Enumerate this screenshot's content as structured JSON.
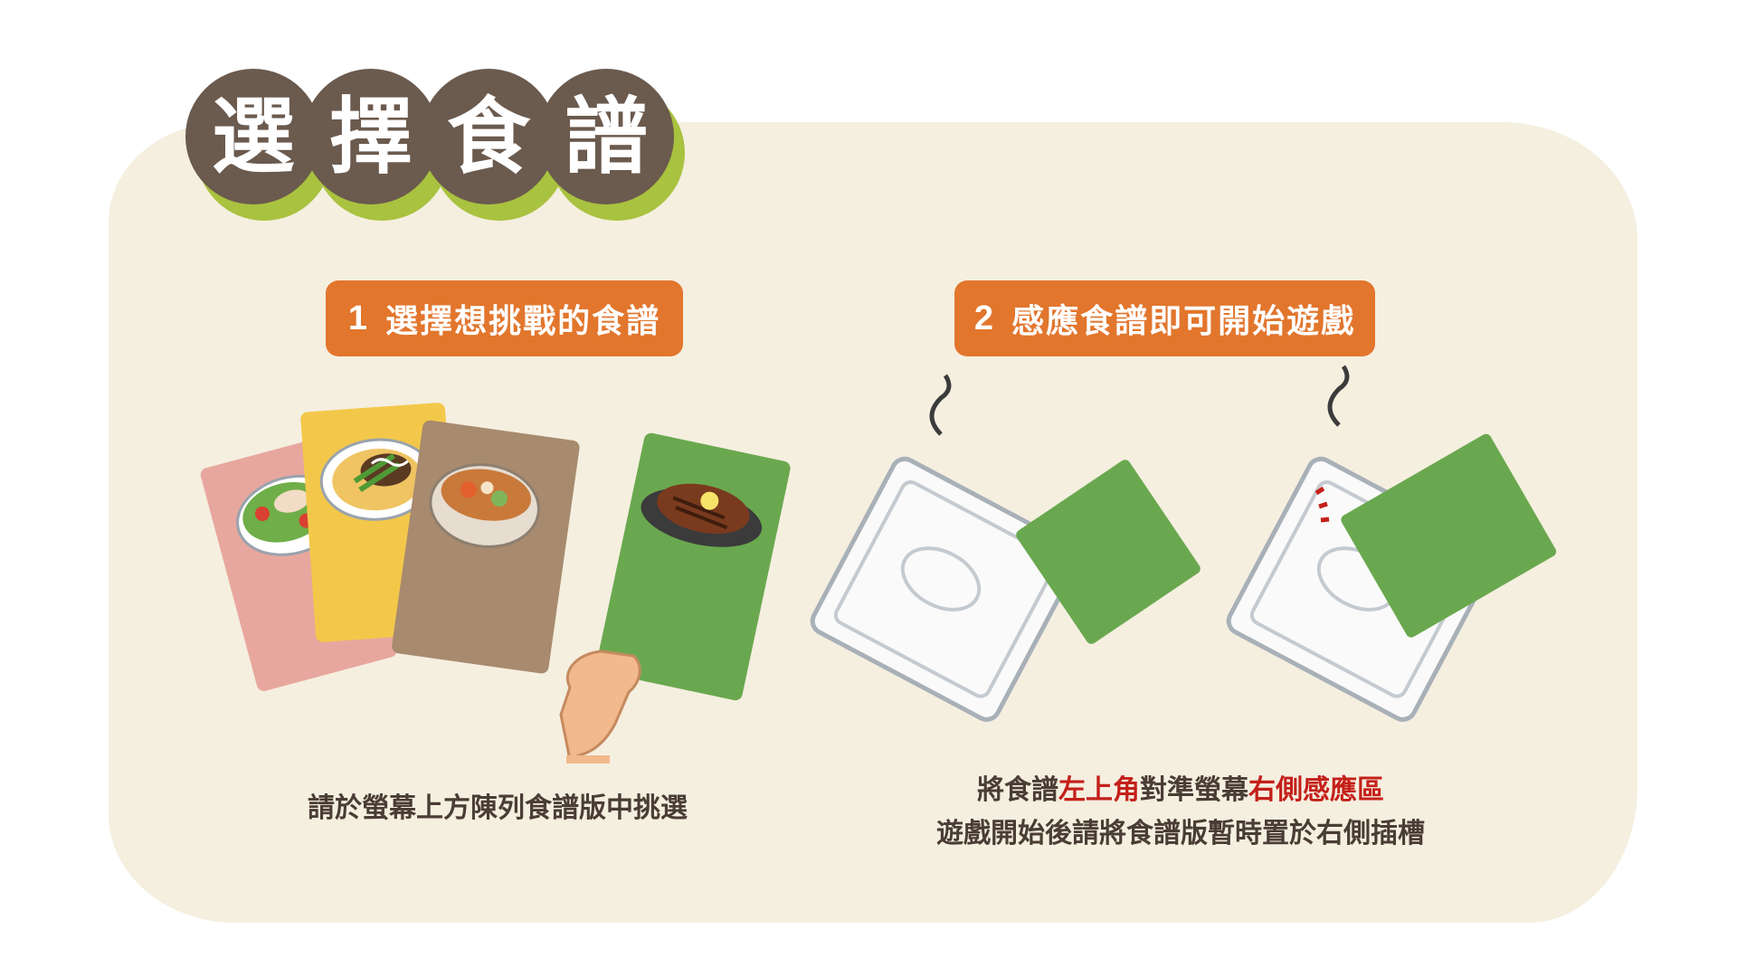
{
  "title": {
    "chars": [
      "選",
      "擇",
      "食",
      "譜"
    ]
  },
  "steps": [
    {
      "number": "1",
      "label": "選擇想挑戰的食譜"
    },
    {
      "number": "2",
      "label": "感應食譜即可開始遊戲"
    }
  ],
  "captions": {
    "step1": "請於螢幕上方陳列食譜版中挑選",
    "step2_line1": {
      "pre": "將食譜",
      "hl1": "左上角",
      "mid": "對準螢幕",
      "hl2": "右側感應區"
    },
    "step2_line2": "遊戲開始後請將食譜版暫時置於右側插槽"
  },
  "colors": {
    "panel": "#f5efe0",
    "title_bubble": "#6b5a4e",
    "title_shadow": "#a9c23f",
    "step_header": "#e2762d",
    "highlight": "#c4201a",
    "card_pink": "#e8a79e",
    "card_yellow": "#f3c84a",
    "card_brown": "#a88a6e",
    "card_green": "#6aa84f"
  },
  "icons": [
    "recipe-card-salad",
    "recipe-card-noodles",
    "recipe-card-stew",
    "recipe-card-steak",
    "hand-icon",
    "nfc-reader-icon",
    "recipe-card-blank"
  ]
}
